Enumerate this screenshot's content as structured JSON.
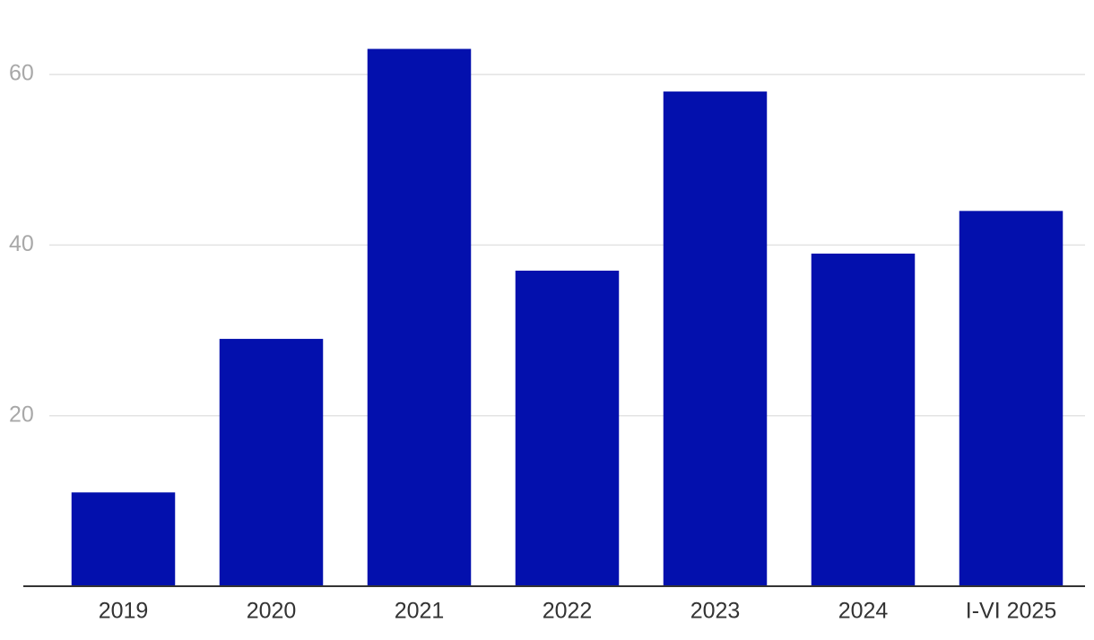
{
  "chart_data": {
    "type": "bar",
    "categories": [
      "2019",
      "2020",
      "2021",
      "2022",
      "2023",
      "2024",
      "I-VI 2025"
    ],
    "values": [
      11,
      29,
      63,
      37,
      58,
      39,
      44
    ],
    "color": "#0310ad",
    "ylim": [
      0,
      66
    ],
    "yticks": [
      20,
      40,
      60
    ],
    "grid": true
  }
}
